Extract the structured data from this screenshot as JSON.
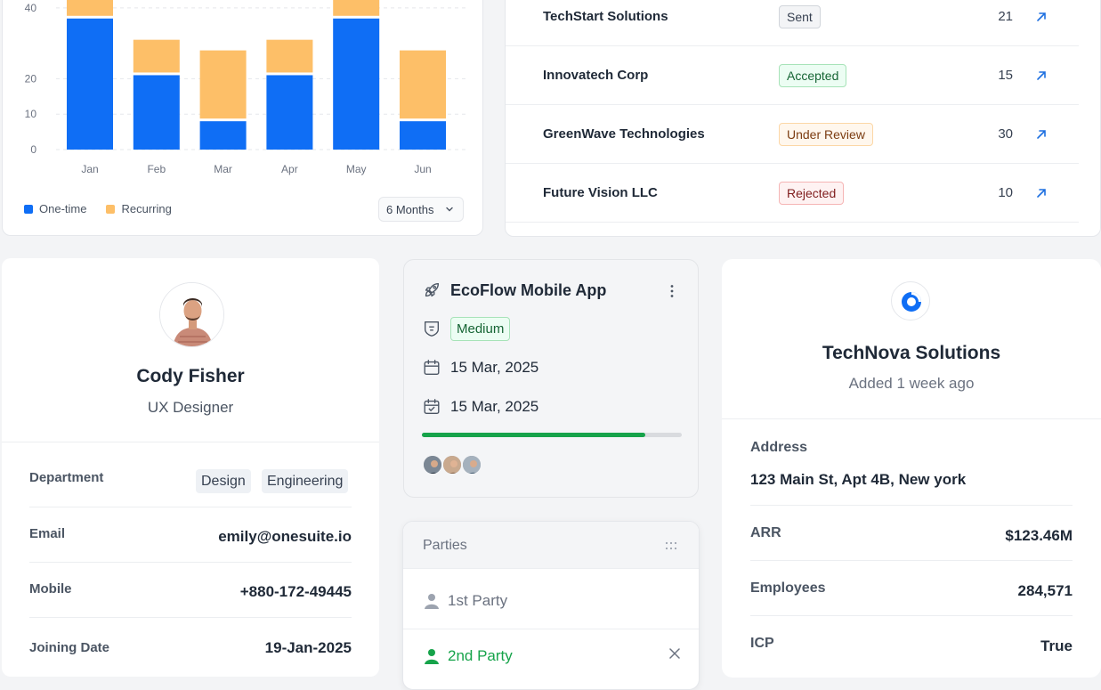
{
  "chart_data": {
    "type": "bar",
    "stacked": true,
    "categories": [
      "Jan",
      "Feb",
      "Mar",
      "Apr",
      "May",
      "Jun"
    ],
    "series": [
      {
        "name": "One-time",
        "values": [
          37,
          21,
          8,
          21,
          37,
          8
        ]
      },
      {
        "name": "Recurring",
        "values": [
          10,
          10,
          20,
          10,
          10,
          20
        ]
      }
    ],
    "yticks": [
      0,
      10,
      20,
      40
    ],
    "ylim": [
      0,
      47
    ],
    "grid": true,
    "legend": "bottom-left",
    "colors": {
      "one_time": "#0f6ef5",
      "recurring": "#fdbf68"
    }
  },
  "chart_footer": {
    "period": "6 Months"
  },
  "proposals": [
    {
      "company": "TechStart Solutions",
      "status": "Sent",
      "count": "21",
      "tone": "gray"
    },
    {
      "company": "Innovatech Corp",
      "status": "Accepted",
      "count": "15",
      "tone": "green"
    },
    {
      "company": "GreenWave Technologies",
      "status": "Under Review",
      "count": "30",
      "tone": "orange"
    },
    {
      "company": "Future Vision LLC",
      "status": "Rejected",
      "count": "10",
      "tone": "red"
    }
  ],
  "profile": {
    "name": "Cody Fisher",
    "role": "UX Designer",
    "department_label": "Department",
    "departments": [
      "Design",
      "Engineering"
    ],
    "email_label": "Email",
    "email": "emily@onesuite.io",
    "mobile_label": "Mobile",
    "mobile": "+880-172-49445",
    "joining_label": "Joining Date",
    "joining": "19-Jan-2025"
  },
  "project": {
    "title": "EcoFlow Mobile App",
    "priority": "Medium",
    "start_date": "15 Mar, 2025",
    "due_date": "15 Mar, 2025",
    "progress": 0.86
  },
  "parties": {
    "title": "Parties",
    "items": [
      "1st Party",
      "2nd Party"
    ]
  },
  "company": {
    "name": "TechNova Solutions",
    "added": "Added 1 week ago",
    "address_label": "Address",
    "address": "123 Main St, Apt 4B, New york",
    "arr_label": "ARR",
    "arr": "$123.46M",
    "employees_label": "Employees",
    "employees": "284,571",
    "icp_label": "ICP",
    "icp": "True"
  }
}
